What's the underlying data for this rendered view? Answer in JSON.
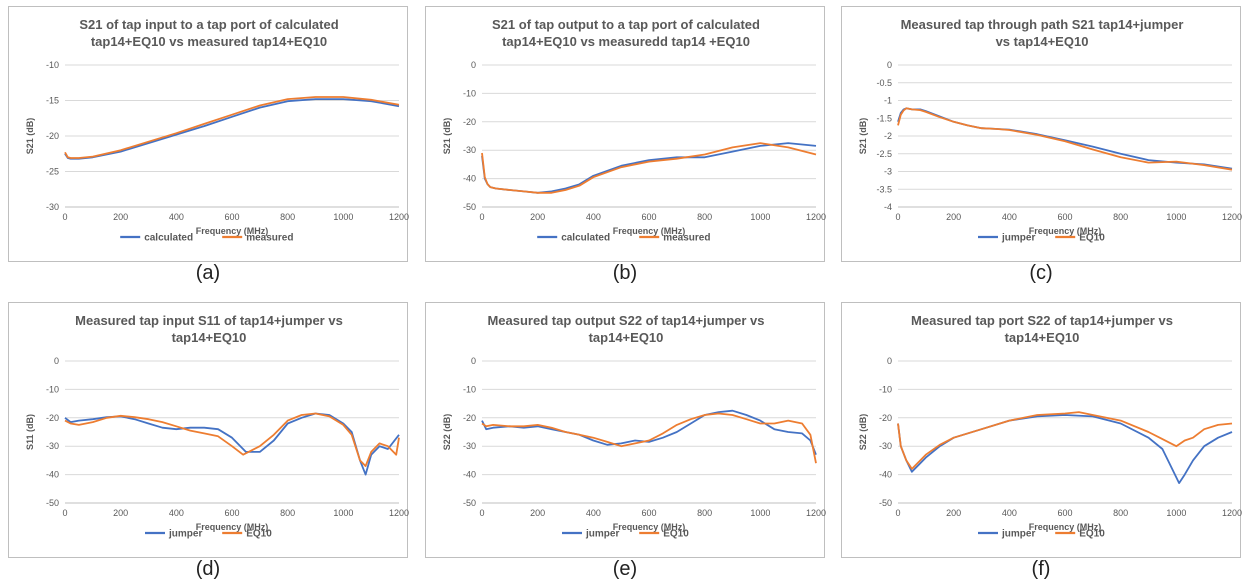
{
  "colors": {
    "blue": "#4472c4",
    "orange": "#ed7d31",
    "grid": "#d9d9d9",
    "text": "#595959"
  },
  "chart_data": [
    {
      "panel_label": "(a)",
      "type": "line",
      "title_lines": [
        "S21 of tap input to a tap port of calculated",
        "tap14+EQ10 vs measured tap14+EQ10"
      ],
      "xlabel": "Frequency (MHz)",
      "ylabel": "S21 (dB)",
      "xlim": [
        0,
        1200
      ],
      "ylim": [
        -30,
        -10
      ],
      "xticks": [
        0,
        200,
        400,
        600,
        800,
        1000,
        1200
      ],
      "yticks": [
        -10,
        -15,
        -20,
        -25,
        -30
      ],
      "grid": true,
      "legend": "bottom",
      "series": [
        {
          "name": "calculated",
          "color": "#4472c4",
          "x": [
            0,
            10,
            20,
            50,
            100,
            200,
            300,
            400,
            500,
            600,
            700,
            800,
            900,
            1000,
            1100,
            1200
          ],
          "y": [
            -22.5,
            -23.1,
            -23.2,
            -23.2,
            -23,
            -22.2,
            -21,
            -19.8,
            -18.6,
            -17.3,
            -16,
            -15.1,
            -14.8,
            -14.8,
            -15.1,
            -15.8
          ]
        },
        {
          "name": "measured",
          "color": "#ed7d31",
          "x": [
            0,
            10,
            20,
            50,
            100,
            200,
            300,
            400,
            500,
            600,
            700,
            800,
            900,
            1000,
            1100,
            1200
          ],
          "y": [
            -22.3,
            -23,
            -23.1,
            -23.1,
            -22.9,
            -22,
            -20.8,
            -19.6,
            -18.3,
            -17,
            -15.7,
            -14.8,
            -14.5,
            -14.5,
            -14.9,
            -15.6
          ]
        }
      ]
    },
    {
      "panel_label": "(b)",
      "type": "line",
      "title_lines": [
        "S21 of tap output to a tap port of calculated",
        "tap14+EQ10 vs measuredd tap14 +EQ10"
      ],
      "xlabel": "Frequency (MHz)",
      "ylabel": "S21 (dB)",
      "xlim": [
        0,
        1200
      ],
      "ylim": [
        -50,
        0
      ],
      "xticks": [
        0,
        200,
        400,
        600,
        800,
        1000,
        1200
      ],
      "yticks": [
        0,
        -10,
        -20,
        -30,
        -40,
        -50
      ],
      "grid": true,
      "legend": "bottom",
      "series": [
        {
          "name": "calculated",
          "color": "#4472c4",
          "x": [
            0,
            10,
            20,
            30,
            50,
            100,
            150,
            200,
            250,
            300,
            350,
            400,
            500,
            600,
            700,
            800,
            900,
            1000,
            1100,
            1200
          ],
          "y": [
            -32,
            -40,
            -42,
            -43,
            -43.5,
            -44,
            -44.5,
            -45,
            -44.5,
            -43.5,
            -42,
            -39,
            -35.5,
            -33.5,
            -32.5,
            -32.5,
            -30.5,
            -28.5,
            -27.5,
            -28.5
          ]
        },
        {
          "name": "measured",
          "color": "#ed7d31",
          "x": [
            0,
            10,
            20,
            30,
            50,
            100,
            150,
            200,
            250,
            300,
            350,
            400,
            500,
            600,
            700,
            800,
            900,
            1000,
            1100,
            1200
          ],
          "y": [
            -31,
            -39.5,
            -42,
            -43,
            -43.5,
            -44,
            -44.5,
            -45,
            -45,
            -44,
            -42.5,
            -39.5,
            -36,
            -34,
            -33,
            -31.5,
            -29,
            -27.5,
            -29,
            -31.5
          ]
        }
      ]
    },
    {
      "panel_label": "(c)",
      "type": "line",
      "title_lines": [
        "Measured tap through path S21 tap14+jumper",
        "vs tap14+EQ10"
      ],
      "xlabel": "Frequency (MHz)",
      "ylabel": "S21 (dB)",
      "xlim": [
        0,
        1200
      ],
      "ylim": [
        -4,
        0
      ],
      "xticks": [
        0,
        200,
        400,
        600,
        800,
        1000,
        1200
      ],
      "yticks": [
        0,
        -0.5,
        -1,
        -1.5,
        -2,
        -2.5,
        -3,
        -3.5,
        -4
      ],
      "grid": true,
      "legend": "bottom",
      "series": [
        {
          "name": "jumper",
          "color": "#4472c4",
          "x": [
            0,
            10,
            20,
            30,
            50,
            80,
            100,
            150,
            200,
            250,
            300,
            350,
            400,
            500,
            600,
            700,
            800,
            900,
            1000,
            1100,
            1200
          ],
          "y": [
            -1.6,
            -1.35,
            -1.25,
            -1.22,
            -1.25,
            -1.25,
            -1.3,
            -1.45,
            -1.6,
            -1.7,
            -1.78,
            -1.8,
            -1.82,
            -1.95,
            -2.12,
            -2.3,
            -2.5,
            -2.68,
            -2.75,
            -2.8,
            -2.92
          ]
        },
        {
          "name": "EQ10",
          "color": "#ed7d31",
          "x": [
            0,
            10,
            20,
            30,
            50,
            80,
            100,
            150,
            200,
            250,
            300,
            350,
            400,
            500,
            600,
            700,
            800,
            900,
            1000,
            1100,
            1200
          ],
          "y": [
            -1.7,
            -1.4,
            -1.28,
            -1.22,
            -1.25,
            -1.27,
            -1.32,
            -1.47,
            -1.6,
            -1.7,
            -1.78,
            -1.8,
            -1.83,
            -1.97,
            -2.15,
            -2.38,
            -2.6,
            -2.75,
            -2.72,
            -2.82,
            -2.95
          ]
        }
      ]
    },
    {
      "panel_label": "(d)",
      "type": "line",
      "title_lines": [
        "Measured tap input S11 of tap14+jumper vs",
        "tap14+EQ10"
      ],
      "xlabel": "Frequency (MHz)",
      "ylabel": "S11 (dB)",
      "xlim": [
        0,
        1200
      ],
      "ylim": [
        -50,
        0
      ],
      "xticks": [
        0,
        200,
        400,
        600,
        800,
        1000,
        1200
      ],
      "yticks": [
        0,
        -10,
        -20,
        -30,
        -40,
        -50
      ],
      "grid": true,
      "legend": "bottom",
      "series": [
        {
          "name": "jumper",
          "color": "#4472c4",
          "x": [
            0,
            20,
            50,
            100,
            150,
            200,
            250,
            300,
            350,
            400,
            450,
            500,
            550,
            600,
            650,
            700,
            750,
            800,
            850,
            900,
            950,
            1000,
            1030,
            1060,
            1080,
            1100,
            1130,
            1160,
            1200
          ],
          "y": [
            -20,
            -21.5,
            -21,
            -20.5,
            -19.8,
            -19.5,
            -20.5,
            -22,
            -23.5,
            -24,
            -23.5,
            -23.5,
            -24,
            -27,
            -32,
            -32,
            -28,
            -22,
            -20,
            -18.5,
            -19,
            -22,
            -25,
            -35,
            -40,
            -33,
            -30,
            -31,
            -26
          ]
        },
        {
          "name": "EQ10",
          "color": "#ed7d31",
          "x": [
            0,
            20,
            50,
            100,
            150,
            200,
            250,
            300,
            350,
            400,
            450,
            500,
            550,
            600,
            640,
            700,
            750,
            800,
            850,
            900,
            950,
            1000,
            1030,
            1060,
            1080,
            1100,
            1130,
            1160,
            1190,
            1200
          ],
          "y": [
            -21,
            -22,
            -22.5,
            -21.5,
            -20,
            -19.3,
            -19.8,
            -20.5,
            -21.5,
            -23,
            -24.5,
            -25.5,
            -26.5,
            -30,
            -33,
            -30,
            -26,
            -21,
            -19,
            -18.5,
            -19.5,
            -22.5,
            -26,
            -35,
            -37,
            -32,
            -29,
            -30,
            -33,
            -27
          ]
        }
      ]
    },
    {
      "panel_label": "(e)",
      "type": "line",
      "title_lines": [
        "Measured tap output S22 of tap14+jumper vs",
        "tap14+EQ10"
      ],
      "xlabel": "Frequency (MHz)",
      "ylabel": "S22 (dB)",
      "xlim": [
        0,
        1200
      ],
      "ylim": [
        -50,
        0
      ],
      "xticks": [
        0,
        200,
        400,
        600,
        800,
        1000,
        1200
      ],
      "yticks": [
        0,
        -10,
        -20,
        -30,
        -40,
        -50
      ],
      "grid": true,
      "legend": "bottom",
      "series": [
        {
          "name": "jumper",
          "color": "#4472c4",
          "x": [
            0,
            15,
            40,
            100,
            150,
            200,
            250,
            300,
            350,
            400,
            450,
            500,
            550,
            600,
            650,
            700,
            750,
            800,
            850,
            900,
            950,
            1000,
            1050,
            1100,
            1150,
            1180,
            1200
          ],
          "y": [
            -21,
            -24,
            -23.5,
            -23,
            -23.5,
            -23,
            -24,
            -25,
            -26,
            -28,
            -29.5,
            -29,
            -28,
            -28.5,
            -27,
            -25,
            -22,
            -19,
            -18,
            -17.5,
            -19,
            -21,
            -24,
            -25,
            -25.5,
            -28,
            -33
          ]
        },
        {
          "name": "EQ10",
          "color": "#ed7d31",
          "x": [
            0,
            15,
            40,
            100,
            150,
            200,
            250,
            300,
            350,
            400,
            450,
            500,
            550,
            600,
            650,
            700,
            750,
            800,
            850,
            900,
            950,
            1000,
            1050,
            1100,
            1150,
            1180,
            1200
          ],
          "y": [
            -22,
            -23,
            -22.5,
            -23,
            -23,
            -22.5,
            -23.5,
            -25,
            -26,
            -27,
            -28.5,
            -30,
            -29,
            -28,
            -25.5,
            -22.5,
            -20.5,
            -19,
            -18.5,
            -19,
            -20.5,
            -22,
            -22,
            -21,
            -22,
            -26,
            -36
          ]
        }
      ]
    },
    {
      "panel_label": "(f)",
      "type": "line",
      "title_lines": [
        "Measured tap port S22 of tap14+jumper vs",
        "tap14+EQ10"
      ],
      "xlabel": "Frequency (MHz)",
      "ylabel": "S22 (dB)",
      "xlim": [
        0,
        1200
      ],
      "ylim": [
        -50,
        0
      ],
      "xticks": [
        0,
        200,
        400,
        600,
        800,
        1000,
        1200
      ],
      "yticks": [
        0,
        -10,
        -20,
        -30,
        -40,
        -50
      ],
      "grid": true,
      "legend": "bottom",
      "series": [
        {
          "name": "jumper",
          "color": "#4472c4",
          "x": [
            0,
            10,
            30,
            50,
            80,
            100,
            150,
            200,
            300,
            400,
            500,
            600,
            700,
            800,
            900,
            950,
            980,
            1000,
            1010,
            1030,
            1060,
            1100,
            1150,
            1200
          ],
          "y": [
            -22,
            -30,
            -35,
            -39,
            -36,
            -34,
            -30,
            -27,
            -24,
            -21,
            -19.5,
            -19,
            -19.5,
            -22,
            -27,
            -31,
            -37,
            -41,
            -43,
            -40,
            -35,
            -30,
            -27,
            -25
          ]
        },
        {
          "name": "EQ10",
          "color": "#ed7d31",
          "x": [
            0,
            10,
            30,
            50,
            80,
            100,
            150,
            200,
            300,
            400,
            500,
            600,
            650,
            700,
            800,
            900,
            950,
            1000,
            1030,
            1060,
            1100,
            1150,
            1200
          ],
          "y": [
            -22,
            -30,
            -35,
            -38,
            -35,
            -33,
            -29.5,
            -27,
            -24,
            -21,
            -19,
            -18.5,
            -18,
            -19,
            -21,
            -25,
            -27.5,
            -30,
            -28,
            -27,
            -24,
            -22.5,
            -22
          ]
        }
      ]
    }
  ]
}
